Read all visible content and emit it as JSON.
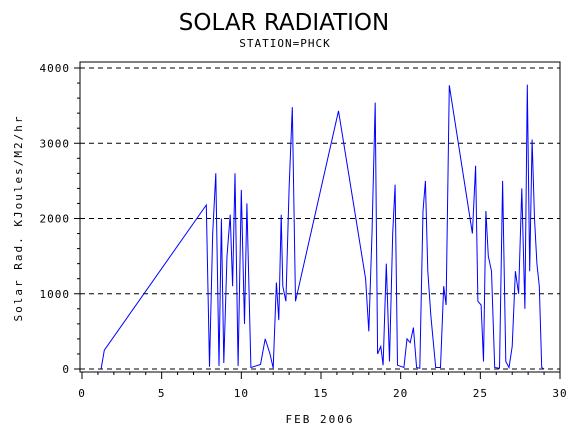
{
  "chart_data": {
    "type": "line",
    "title": "SOLAR RADIATION",
    "subtitle": "STATION=PHCK",
    "xlabel": "FEB 2006",
    "ylabel": "Solar Rad. KJoules/M2/hr",
    "xlim": [
      0,
      30
    ],
    "ylim": [
      0,
      4000
    ],
    "xticks": [
      0,
      5,
      10,
      15,
      20,
      25,
      30
    ],
    "yticks": [
      0,
      1000,
      2000,
      3000,
      4000
    ],
    "grid": "horizontal-dashed",
    "line_color": "#0000ff",
    "series": [
      {
        "values": [
          [
            1.2,
            0
          ],
          [
            1.4,
            250
          ],
          [
            7.8,
            2180
          ],
          [
            8.0,
            30
          ],
          [
            8.2,
            1800
          ],
          [
            8.4,
            2600
          ],
          [
            8.6,
            40
          ],
          [
            8.75,
            2000
          ],
          [
            8.9,
            80
          ],
          [
            9.1,
            1500
          ],
          [
            9.3,
            2050
          ],
          [
            9.45,
            1100
          ],
          [
            9.6,
            2600
          ],
          [
            9.8,
            40
          ],
          [
            10.0,
            2380
          ],
          [
            10.2,
            600
          ],
          [
            10.35,
            2200
          ],
          [
            10.6,
            20
          ],
          [
            11.2,
            60
          ],
          [
            11.5,
            400
          ],
          [
            11.8,
            200
          ],
          [
            12.0,
            10
          ],
          [
            12.2,
            1150
          ],
          [
            12.35,
            650
          ],
          [
            12.5,
            2050
          ],
          [
            12.6,
            1100
          ],
          [
            12.8,
            900
          ],
          [
            13.0,
            2400
          ],
          [
            13.2,
            3480
          ],
          [
            13.4,
            900
          ],
          [
            16.1,
            3430
          ],
          [
            17.8,
            1200
          ],
          [
            18.0,
            500
          ],
          [
            18.2,
            1800
          ],
          [
            18.4,
            3540
          ],
          [
            18.55,
            200
          ],
          [
            18.75,
            300
          ],
          [
            18.9,
            50
          ],
          [
            19.1,
            1400
          ],
          [
            19.3,
            100
          ],
          [
            19.5,
            1800
          ],
          [
            19.65,
            2450
          ],
          [
            19.8,
            50
          ],
          [
            20.2,
            20
          ],
          [
            20.4,
            400
          ],
          [
            20.6,
            350
          ],
          [
            20.8,
            550
          ],
          [
            21.0,
            20
          ],
          [
            21.2,
            10
          ],
          [
            21.4,
            2100
          ],
          [
            21.55,
            2500
          ],
          [
            21.7,
            1300
          ],
          [
            21.9,
            700
          ],
          [
            22.2,
            20
          ],
          [
            22.5,
            20
          ],
          [
            22.7,
            1100
          ],
          [
            22.85,
            850
          ],
          [
            23.05,
            3770
          ],
          [
            24.5,
            1800
          ],
          [
            24.7,
            2700
          ],
          [
            24.85,
            900
          ],
          [
            25.05,
            850
          ],
          [
            25.2,
            100
          ],
          [
            25.35,
            2100
          ],
          [
            25.5,
            1500
          ],
          [
            25.7,
            1300
          ],
          [
            25.9,
            20
          ],
          [
            26.2,
            10
          ],
          [
            26.4,
            2500
          ],
          [
            26.6,
            100
          ],
          [
            26.8,
            20
          ],
          [
            27.0,
            300
          ],
          [
            27.2,
            1300
          ],
          [
            27.4,
            1000
          ],
          [
            27.6,
            2400
          ],
          [
            27.8,
            800
          ],
          [
            27.95,
            3780
          ],
          [
            28.1,
            1300
          ],
          [
            28.25,
            3050
          ],
          [
            28.4,
            2000
          ],
          [
            28.55,
            1400
          ],
          [
            28.7,
            1100
          ],
          [
            28.85,
            20
          ],
          [
            29.0,
            0
          ]
        ]
      }
    ]
  }
}
